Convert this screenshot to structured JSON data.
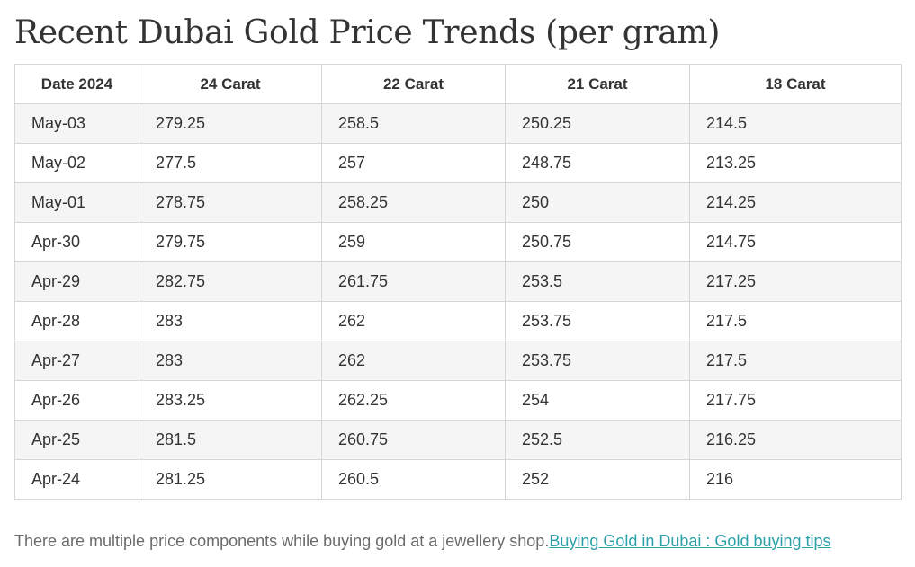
{
  "page": {
    "title": "Recent Dubai Gold Price Trends (per gram)"
  },
  "table": {
    "headers": [
      "Date 2024",
      "24 Carat",
      "22 Carat",
      "21 Carat",
      "18 Carat"
    ],
    "rows": [
      [
        "May-03",
        "279.25",
        "258.5",
        "250.25",
        "214.5"
      ],
      [
        "May-02",
        "277.5",
        "257",
        "248.75",
        "213.25"
      ],
      [
        "May-01",
        "278.75",
        "258.25",
        "250",
        "214.25"
      ],
      [
        "Apr-30",
        "279.75",
        "259",
        "250.75",
        "214.75"
      ],
      [
        "Apr-29",
        "282.75",
        "261.75",
        "253.5",
        "217.25"
      ],
      [
        "Apr-28",
        "283",
        "262",
        "253.75",
        "217.5"
      ],
      [
        "Apr-27",
        "283",
        "262",
        "253.75",
        "217.5"
      ],
      [
        "Apr-26",
        "283.25",
        "262.25",
        "254",
        "217.75"
      ],
      [
        "Apr-25",
        "281.5",
        "260.75",
        "252.5",
        "216.25"
      ],
      [
        "Apr-24",
        "281.25",
        "260.5",
        "252",
        "216"
      ]
    ]
  },
  "footer": {
    "text": "There are multiple price components while buying gold at a jewellery shop.",
    "link_label": "Buying Gold in Dubai : Gold buying tips"
  },
  "colors": {
    "link": "#2aa0a8",
    "row_stripe": "#f5f5f5",
    "border": "#d6d6d6"
  }
}
